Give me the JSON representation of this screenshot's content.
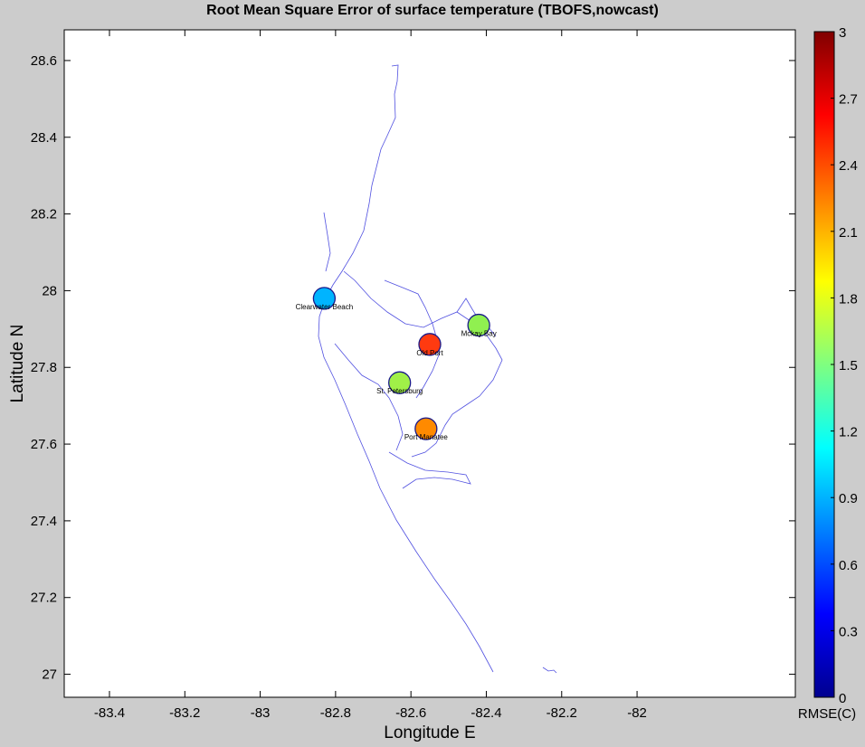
{
  "title": "Root Mean Square Error of surface temperature  (TBOFS,nowcast)",
  "xlabel": "Longitude E",
  "ylabel": "Latitude N",
  "colorbar_label": "RMSE(C)",
  "x_ticks": [
    "-83.4",
    "-83.2",
    "-83",
    "-82.8",
    "-82.6",
    "-82.4",
    "-82.2",
    "-82"
  ],
  "y_ticks": [
    "28.6",
    "28.4",
    "28.2",
    "28",
    "27.8",
    "27.6",
    "27.4",
    "27.2",
    "27"
  ],
  "colorbar_ticks": [
    "3",
    "2.7",
    "2.4",
    "2.1",
    "1.8",
    "1.5",
    "1.2",
    "0.9",
    "0.6",
    "0.3",
    "0"
  ],
  "map": {
    "xlim": [
      -83.52,
      -81.58
    ],
    "ylim": [
      26.94,
      28.68
    ],
    "colorbar_range": [
      0,
      3
    ]
  },
  "stations": [
    {
      "name": "Clearwater Beach",
      "lon": -82.83,
      "lat": 27.98,
      "rmse": 1.0,
      "color": "#00b4ff"
    },
    {
      "name": "Mckay Bay",
      "lon": -82.42,
      "lat": 27.91,
      "rmse": 1.6,
      "color": "#90f050"
    },
    {
      "name": "Old Port",
      "lon": -82.55,
      "lat": 27.86,
      "rmse": 2.55,
      "color": "#ff3a10"
    },
    {
      "name": "St. Petersburg",
      "lon": -82.63,
      "lat": 27.76,
      "rmse": 1.6,
      "color": "#a0f048"
    },
    {
      "name": "Port Manatee",
      "lon": -82.56,
      "lat": 27.64,
      "rmse": 2.2,
      "color": "#ff8a00"
    }
  ]
}
